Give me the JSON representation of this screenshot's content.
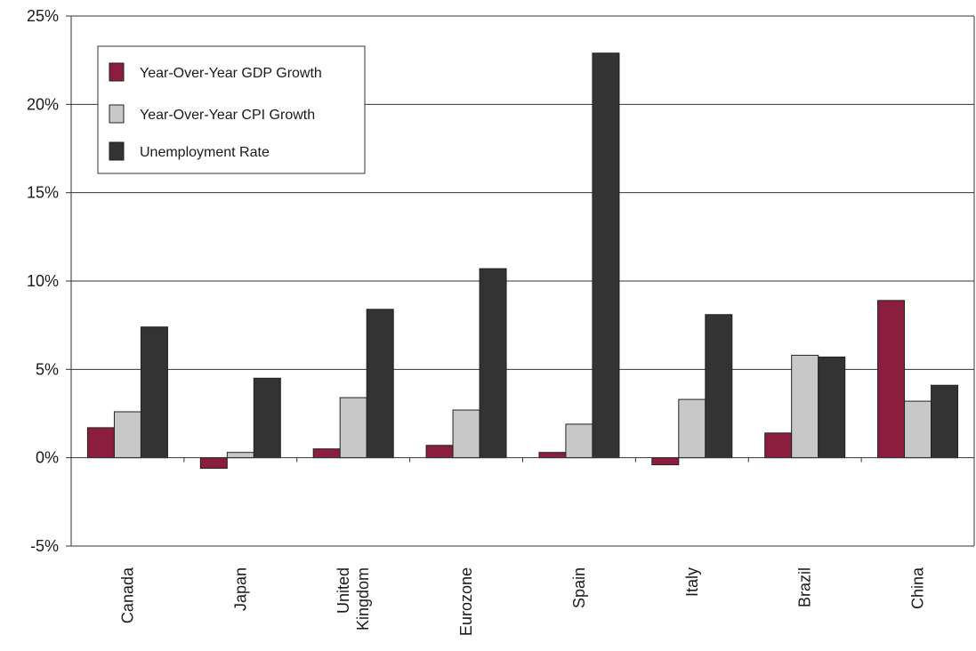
{
  "chart_data": {
    "type": "bar",
    "title": "",
    "xlabel": "",
    "ylabel": "",
    "categories": [
      "Canada",
      "Japan",
      "United Kingdom",
      "Eurozone",
      "Spain",
      "Italy",
      "Brazil",
      "China"
    ],
    "category_label_lines": [
      [
        "Canada"
      ],
      [
        "Japan"
      ],
      [
        "United",
        "Kingdom"
      ],
      [
        "Eurozone"
      ],
      [
        "Spain"
      ],
      [
        "Italy"
      ],
      [
        "Brazil"
      ],
      [
        "China"
      ]
    ],
    "series": [
      {
        "name": "Year-Over-Year GDP Growth",
        "color": "#8b1e3f",
        "values": [
          1.7,
          -0.6,
          0.5,
          0.7,
          0.3,
          -0.4,
          1.4,
          8.9
        ]
      },
      {
        "name": "Year-Over-Year CPI Growth",
        "color": "#c8c8c8",
        "values": [
          2.6,
          0.3,
          3.4,
          2.7,
          1.9,
          3.3,
          5.8,
          3.2
        ]
      },
      {
        "name": "Unemployment Rate",
        "color": "#333333",
        "values": [
          7.4,
          4.5,
          8.4,
          10.7,
          22.9,
          8.1,
          5.7,
          4.1
        ]
      }
    ],
    "ylim": [
      -5,
      25
    ],
    "yticks": [
      -5,
      0,
      5,
      10,
      15,
      20,
      25
    ],
    "ytick_labels": [
      "-5%",
      "0%",
      "5%",
      "10%",
      "15%",
      "20%",
      "25%"
    ],
    "grid": true,
    "legend_position": "top-left"
  }
}
